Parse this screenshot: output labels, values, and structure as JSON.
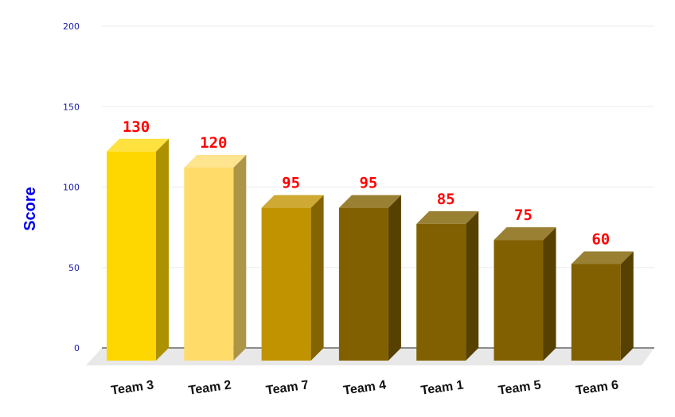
{
  "chart_data": {
    "type": "bar",
    "title": "",
    "xlabel": "",
    "ylabel": "Score",
    "ylim": [
      0,
      200
    ],
    "yticks": [
      0,
      50,
      100,
      150,
      200
    ],
    "categories": [
      "Team 3",
      "Team 2",
      "Team 7",
      "Team 4",
      "Team 1",
      "Team 5",
      "Team 6"
    ],
    "values": [
      130,
      120,
      95,
      95,
      85,
      75,
      60
    ],
    "data_labels": [
      "130",
      "120",
      "95",
      "95",
      "85",
      "75",
      "60"
    ],
    "grid": true,
    "style": "3d-columns",
    "colors": {
      "bars": [
        "#ffd700",
        "#ffdb6a",
        "#c29300",
        "#806000",
        "#806000",
        "#806000",
        "#806000"
      ],
      "data_label": "#ff0000",
      "axis_label": "#0000ee",
      "tick_label": "#1a1aa6"
    }
  }
}
